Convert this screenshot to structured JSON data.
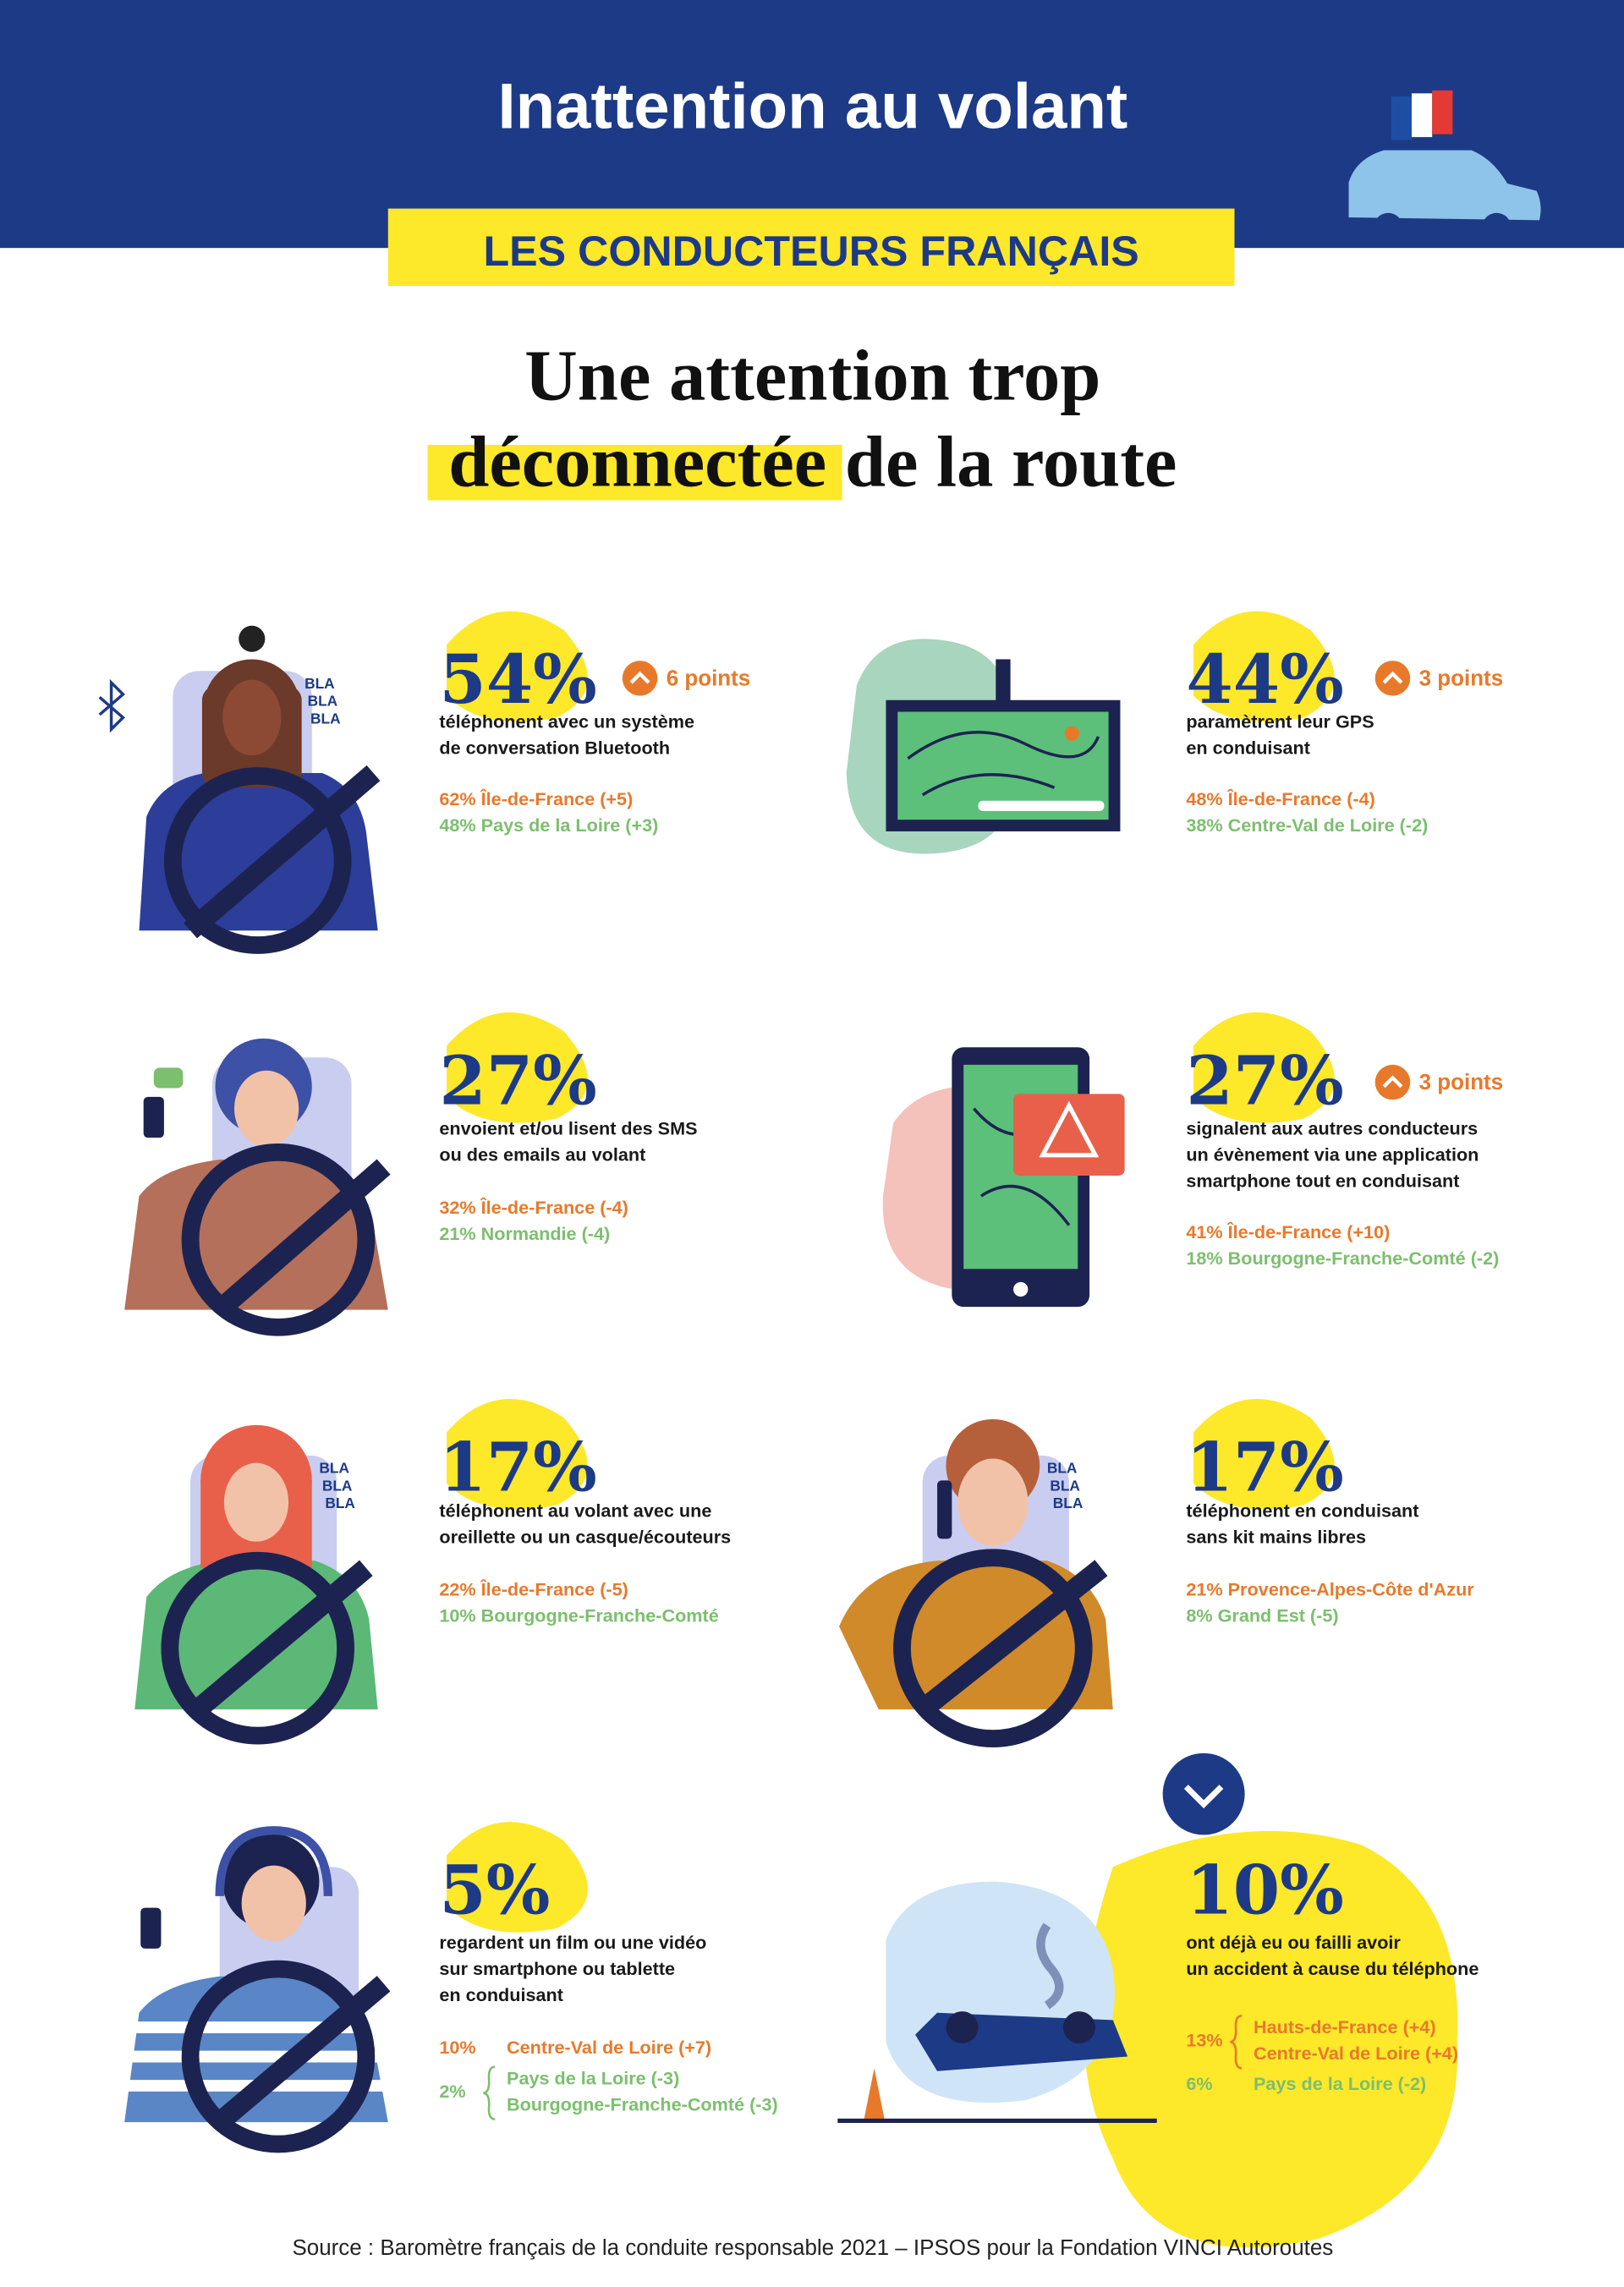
{
  "header": {
    "title": "Inattention au volant",
    "subtitle": "LES CONDUCTEURS FRANÇAIS"
  },
  "headline": {
    "line1": "Une attention trop",
    "highlight": "déconnectée",
    "rest": "de la route"
  },
  "bubble_text": [
    "BLA",
    "BLA",
    "BLA"
  ],
  "stats": [
    {
      "percent": "54%",
      "change": "6 points",
      "description": [
        "téléphonent avec un système",
        "de conversation Bluetooth"
      ],
      "regions": [
        "62% Île-de-France (+5)",
        "48% Pays de la Loire (+3)"
      ]
    },
    {
      "percent": "44%",
      "change": "3 points",
      "description": [
        "paramètrent leur GPS",
        "en conduisant"
      ],
      "regions": [
        "48% Île-de-France (-4)",
        "38% Centre-Val de Loire (-2)"
      ]
    },
    {
      "percent": "27%",
      "description": [
        "envoient et/ou lisent des SMS",
        "ou des emails au volant"
      ],
      "regions": [
        "32% Île-de-France (-4)",
        "21% Normandie (-4)"
      ]
    },
    {
      "percent": "27%",
      "change": "3 points",
      "description": [
        "signalent aux autres conducteurs",
        "un évènement via une application",
        "smartphone tout en conduisant"
      ],
      "regions": [
        "41% Île-de-France (+10)",
        "18% Bourgogne-Franche-Comté (-2)"
      ]
    },
    {
      "percent": "17%",
      "description": [
        "téléphonent au volant avec une",
        "oreillette ou un casque/écouteurs"
      ],
      "regions": [
        "22% Île-de-France (-5)",
        "10% Bourgogne-Franche-Comté"
      ]
    },
    {
      "percent": "17%",
      "description": [
        "téléphonent en conduisant",
        "sans kit mains libres"
      ],
      "regions": [
        "21% Provence-Alpes-Côte d'Azur",
        "8% Grand Est (-5)"
      ]
    },
    {
      "percent": "5%",
      "description": [
        "regardent un film ou une vidéo",
        "sur smartphone ou tablette",
        "en conduisant"
      ],
      "regions": [
        {
          "share": "10%",
          "lines": [
            "Centre-Val de Loire (+7)"
          ]
        },
        {
          "share": "2%",
          "lines": [
            "Pays de la Loire (-3)",
            "Bourgogne-Franche-Comté (-3)"
          ]
        }
      ]
    },
    {
      "percent": "10%",
      "description": [
        "ont déjà eu ou failli avoir",
        "un accident à cause du téléphone"
      ],
      "regions": [
        {
          "share": "13%",
          "lines": [
            "Hauts-de-France (+4)",
            "Centre-Val de Loire (+4)"
          ]
        },
        {
          "share": "6%",
          "lines": [
            "Pays de la Loire (-2)"
          ]
        }
      ]
    }
  ],
  "source": "Source : Baromètre français de la conduite responsable 2021 – IPSOS pour la Fondation VINCI Autoroutes"
}
